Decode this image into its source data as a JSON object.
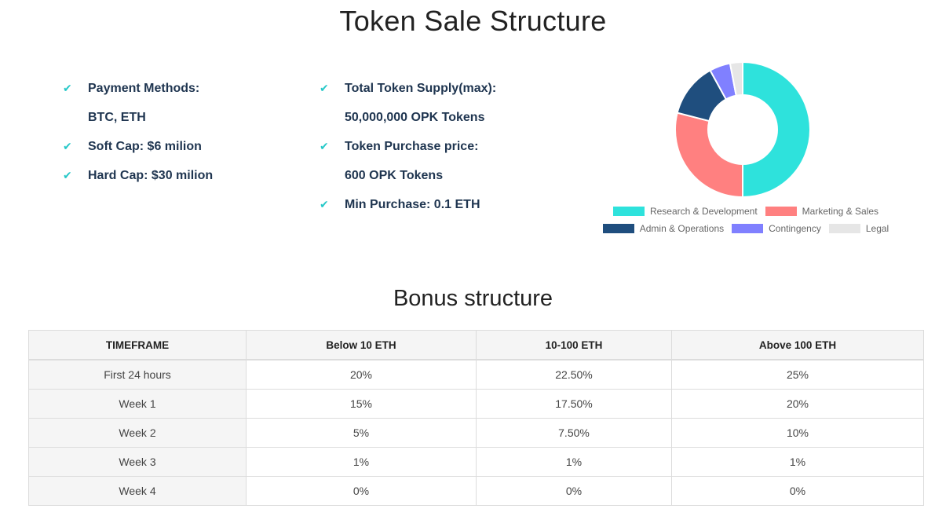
{
  "page_title": "Token Sale Structure",
  "info_left": [
    {
      "text": "Payment Methods:",
      "check": true
    },
    {
      "text": "BTC, ETH",
      "check": false
    },
    {
      "text": "Soft Cap: $6 milion",
      "check": true
    },
    {
      "text": "Hard Cap: $30 milion",
      "check": true
    }
  ],
  "info_right": [
    {
      "text": "Total Token Supply(max):",
      "check": true
    },
    {
      "text": "50,000,000 OPK Tokens",
      "check": false
    },
    {
      "text": "Token Purchase price:",
      "check": true
    },
    {
      "text": "600 OPK Tokens",
      "check": false
    },
    {
      "text": "Min Purchase: 0.1 ETH",
      "check": true
    }
  ],
  "check_icon": "checkmark-icon",
  "chart_data": {
    "type": "pie",
    "donut": true,
    "legend_position": "bottom",
    "series": [
      {
        "name": "Research & Development",
        "value": 50,
        "color": "#2ee2dc"
      },
      {
        "name": "Marketing & Sales",
        "value": 29,
        "color": "#ff8080"
      },
      {
        "name": "Admin & Operations",
        "value": 13,
        "color": "#1f4e7e"
      },
      {
        "name": "Contingency",
        "value": 5,
        "color": "#8080ff"
      },
      {
        "name": "Legal",
        "value": 3,
        "color": "#e6e6e6"
      }
    ]
  },
  "bonus": {
    "title": "Bonus structure",
    "headers": [
      "TIMEFRAME",
      "Below 10 ETH",
      "10-100 ETH",
      "Above 100 ETH"
    ],
    "rows": [
      [
        "First 24 hours",
        "20%",
        "22.50%",
        "25%"
      ],
      [
        "Week 1",
        "15%",
        "17.50%",
        "20%"
      ],
      [
        "Week 2",
        "5%",
        "7.50%",
        "10%"
      ],
      [
        "Week 3",
        "1%",
        "1%",
        "1%"
      ],
      [
        "Week 4",
        "0%",
        "0%",
        "0%"
      ]
    ]
  }
}
